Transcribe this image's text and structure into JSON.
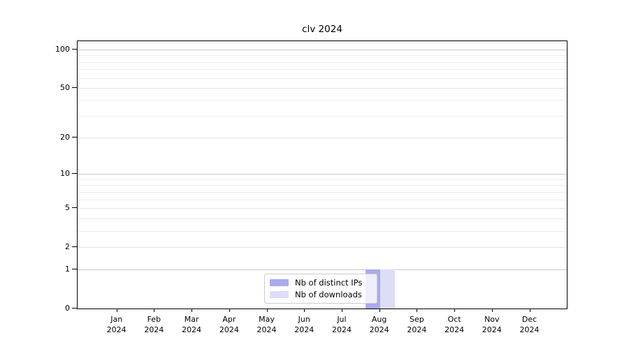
{
  "chart_data": {
    "type": "bar",
    "title": "clv 2024",
    "categories": [
      "Jan 2024",
      "Feb 2024",
      "Mar 2024",
      "Apr 2024",
      "May 2024",
      "Jun 2024",
      "Jul 2024",
      "Aug 2024",
      "Sep 2024",
      "Oct 2024",
      "Nov 2024",
      "Dec 2024"
    ],
    "series": [
      {
        "name": "Nb of distinct IPs",
        "color": "#aaaaee",
        "values": [
          0,
          0,
          0,
          0,
          0,
          0,
          0,
          1,
          0,
          0,
          0,
          0
        ]
      },
      {
        "name": "Nb of downloads",
        "color": "#ddddf8",
        "values": [
          0,
          0,
          0,
          0,
          0,
          0,
          0,
          1,
          0,
          0,
          0,
          0
        ]
      }
    ],
    "xlabel": "",
    "ylabel": "",
    "yscale": "log1p",
    "ylim": [
      0,
      100
    ],
    "yticks": [
      0,
      1,
      2,
      5,
      10,
      20,
      50,
      100
    ],
    "grid": "horizontal",
    "legend_position": "lower-center"
  }
}
